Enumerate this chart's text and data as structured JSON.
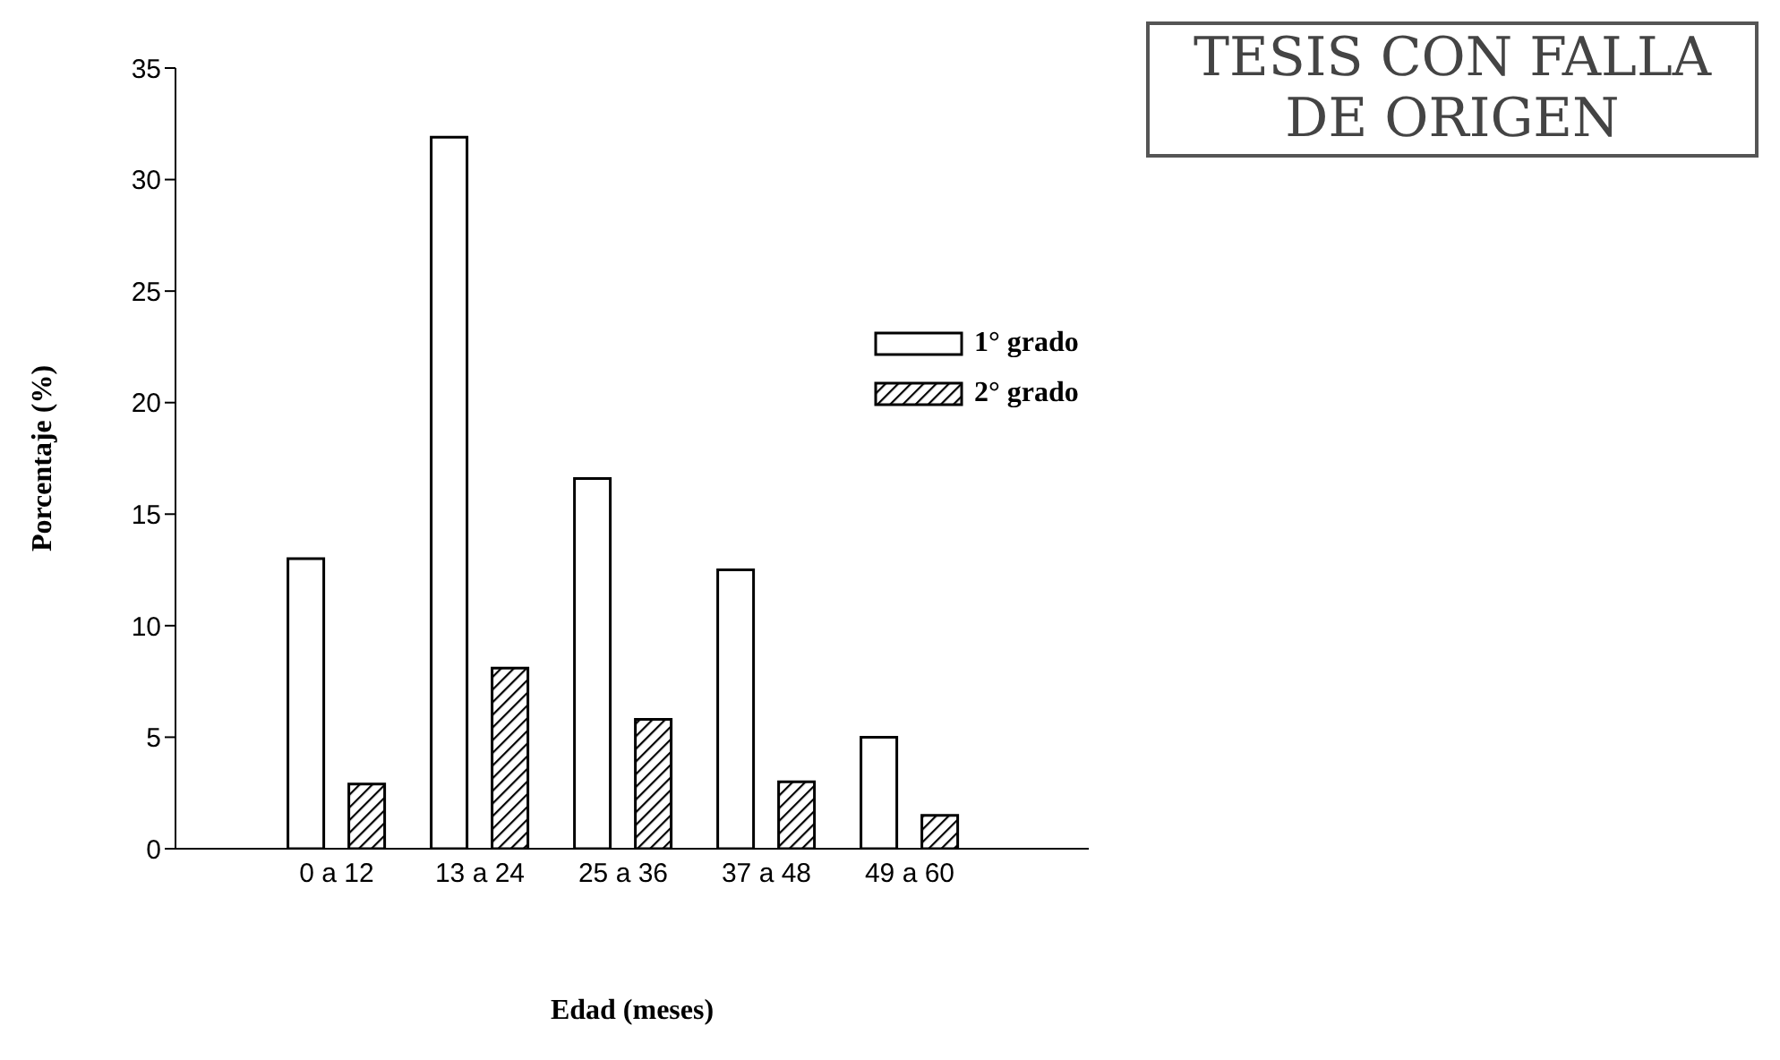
{
  "chart_data": {
    "type": "bar",
    "xlabel": "Edad (meses)",
    "ylabel": "Porcentaje (%)",
    "categories": [
      "0 a 12",
      "13 a 24",
      "25 a 36",
      "37 a 48",
      "49 a 60"
    ],
    "series": [
      {
        "name": "1° grado",
        "color": "#ffffff",
        "values": [
          13,
          31.9,
          16.6,
          12.5,
          5
        ]
      },
      {
        "name": "2° grado",
        "color": "#000000",
        "values": [
          2.9,
          8.1,
          5.8,
          3,
          1.5
        ]
      }
    ],
    "ylim": [
      0,
      35
    ],
    "yticks": [
      0,
      5,
      10,
      15,
      20,
      25,
      30,
      35
    ],
    "legend": "top right",
    "annotations": [
      "TESIS CON FALLA DE ORIGEN"
    ]
  }
}
